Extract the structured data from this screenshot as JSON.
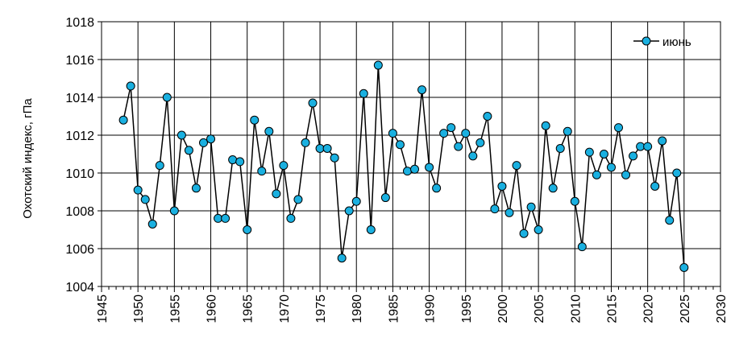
{
  "chart_data": {
    "type": "line",
    "title": "",
    "xlabel": "",
    "ylabel": "Охотский индекс, гПа",
    "xlim": [
      1945,
      2030
    ],
    "ylim": [
      1004,
      1018
    ],
    "x_major_step": 5,
    "y_major_step": 2,
    "grid": true,
    "legend_position": "top-right",
    "x_ticks": [
      "1945",
      "1950",
      "1955",
      "1960",
      "1965",
      "1970",
      "1975",
      "1980",
      "1985",
      "1990",
      "1995",
      "2000",
      "2005",
      "2010",
      "2015",
      "2020",
      "2025",
      "2030"
    ],
    "y_ticks": [
      "1004",
      "1006",
      "1008",
      "1010",
      "1012",
      "1014",
      "1016",
      "1018"
    ],
    "series": [
      {
        "name": "июнь",
        "line_color": "#000000",
        "marker_color": "#1ab0e0",
        "x": [
          1948,
          1949,
          1950,
          1951,
          1952,
          1953,
          1954,
          1955,
          1956,
          1957,
          1958,
          1959,
          1960,
          1961,
          1962,
          1963,
          1964,
          1965,
          1966,
          1967,
          1968,
          1969,
          1970,
          1971,
          1972,
          1973,
          1974,
          1975,
          1976,
          1977,
          1978,
          1979,
          1980,
          1981,
          1982,
          1983,
          1984,
          1985,
          1986,
          1987,
          1988,
          1989,
          1990,
          1991,
          1992,
          1993,
          1994,
          1995,
          1996,
          1997,
          1998,
          1999,
          2000,
          2001,
          2002,
          2003,
          2004,
          2005,
          2006,
          2007,
          2008,
          2009,
          2010,
          2011,
          2012,
          2013,
          2014,
          2015,
          2016,
          2017,
          2018,
          2019,
          2020,
          2021,
          2022,
          2023,
          2024,
          2025
        ],
        "y": [
          1012.8,
          1014.6,
          1009.1,
          1008.6,
          1007.3,
          1010.4,
          1014.0,
          1008.0,
          1012.0,
          1011.2,
          1009.2,
          1011.6,
          1011.8,
          1007.6,
          1007.6,
          1010.7,
          1010.6,
          1007.0,
          1012.8,
          1010.1,
          1012.2,
          1008.9,
          1010.4,
          1007.6,
          1008.6,
          1011.6,
          1013.7,
          1011.3,
          1011.3,
          1010.8,
          1005.5,
          1008.0,
          1008.5,
          1014.2,
          1007.0,
          1015.7,
          1008.7,
          1012.1,
          1011.5,
          1010.1,
          1010.2,
          1014.4,
          1010.3,
          1009.2,
          1012.1,
          1012.4,
          1011.4,
          1012.1,
          1010.9,
          1011.6,
          1013.0,
          1008.1,
          1009.3,
          1007.9,
          1010.4,
          1006.8,
          1008.2,
          1007.0,
          1012.5,
          1009.2,
          1011.3,
          1012.2,
          1008.5,
          1006.1,
          1011.1,
          1009.9,
          1011.0,
          1010.3,
          1012.4,
          1009.9,
          1010.9,
          1011.4,
          1011.4,
          1009.3,
          1011.7,
          1007.5,
          1010.0,
          1005.0
        ]
      }
    ]
  }
}
